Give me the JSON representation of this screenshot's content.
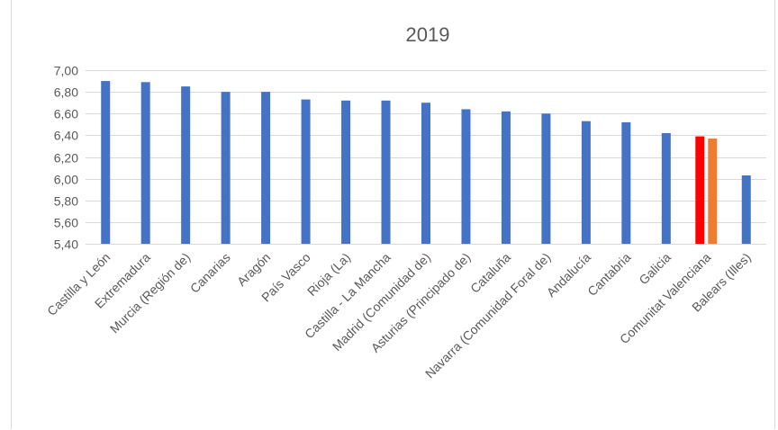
{
  "chart_data": {
    "type": "bar",
    "title": "2019",
    "xlabel": "",
    "ylabel": "",
    "ylim": [
      5.4,
      7.0
    ],
    "ytick_step": 0.2,
    "yticks": [
      "5,40",
      "5,60",
      "5,80",
      "6,00",
      "6,20",
      "6,40",
      "6,60",
      "6,80",
      "7,00"
    ],
    "grid": true,
    "legend": "none",
    "categories": [
      "Castilla y León",
      "Extremadura",
      "Murcia (Región de)",
      "Canarias",
      "Aragón",
      "País Vasco",
      "Rioja (La)",
      "Castilla - La Mancha",
      "Madrid (Comunidad de)",
      "Asturias (Principado de)",
      "Cataluña",
      "Navarra (Comunidad Foral de)",
      "Andalucía",
      "Cantabria",
      "Galicia",
      "Comunitat Valenciana",
      "Balears (Illes)"
    ],
    "series": [
      {
        "values": [
          6.9,
          6.89,
          6.85,
          6.8,
          6.8,
          6.73,
          6.72,
          6.72,
          6.7,
          6.64,
          6.62,
          6.6,
          6.53,
          6.52,
          6.42,
          6.39,
          6.03
        ],
        "color": "#4472c4",
        "highlight": {
          "index": 15,
          "color": "#ff0000"
        }
      },
      {
        "values": [
          null,
          null,
          null,
          null,
          null,
          null,
          null,
          null,
          null,
          null,
          null,
          null,
          null,
          null,
          null,
          6.37,
          null
        ],
        "color": "#ed7d31"
      }
    ]
  }
}
